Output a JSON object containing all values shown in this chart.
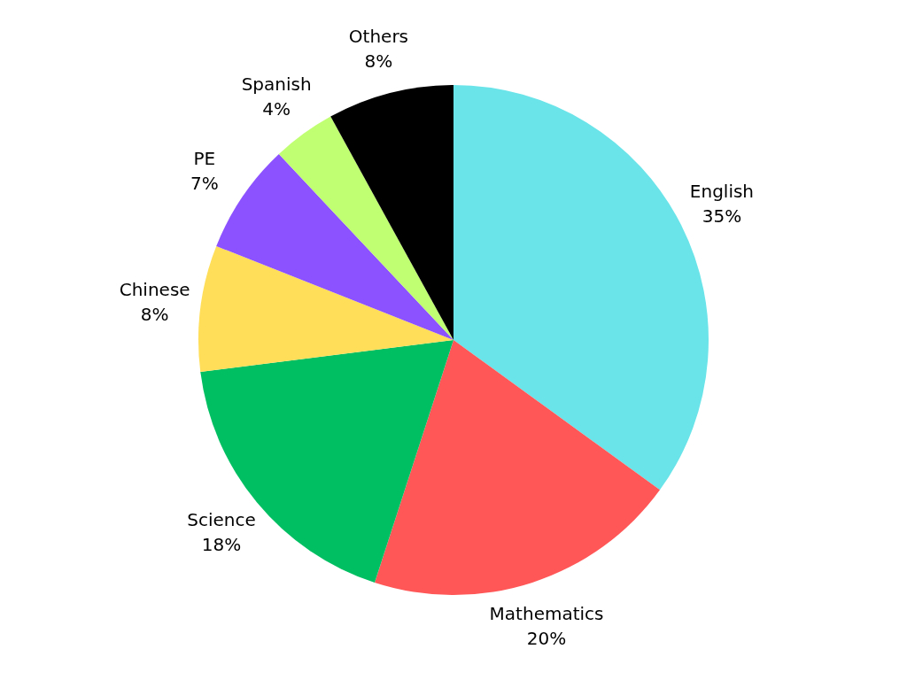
{
  "chart_data": {
    "type": "pie",
    "categories": [
      "English",
      "Mathematics",
      "Science",
      "Chinese",
      "PE",
      "Spanish",
      "Others"
    ],
    "values": [
      35,
      20,
      18,
      8,
      7,
      4,
      8
    ],
    "value_labels": [
      "35%",
      "20%",
      "18%",
      "8%",
      "7%",
      "4%",
      "8%"
    ],
    "colors": [
      "#6ae4e9",
      "#ff5757",
      "#00bf63",
      "#ffde59",
      "#8c52ff",
      "#c1ff72",
      "#000000"
    ]
  }
}
